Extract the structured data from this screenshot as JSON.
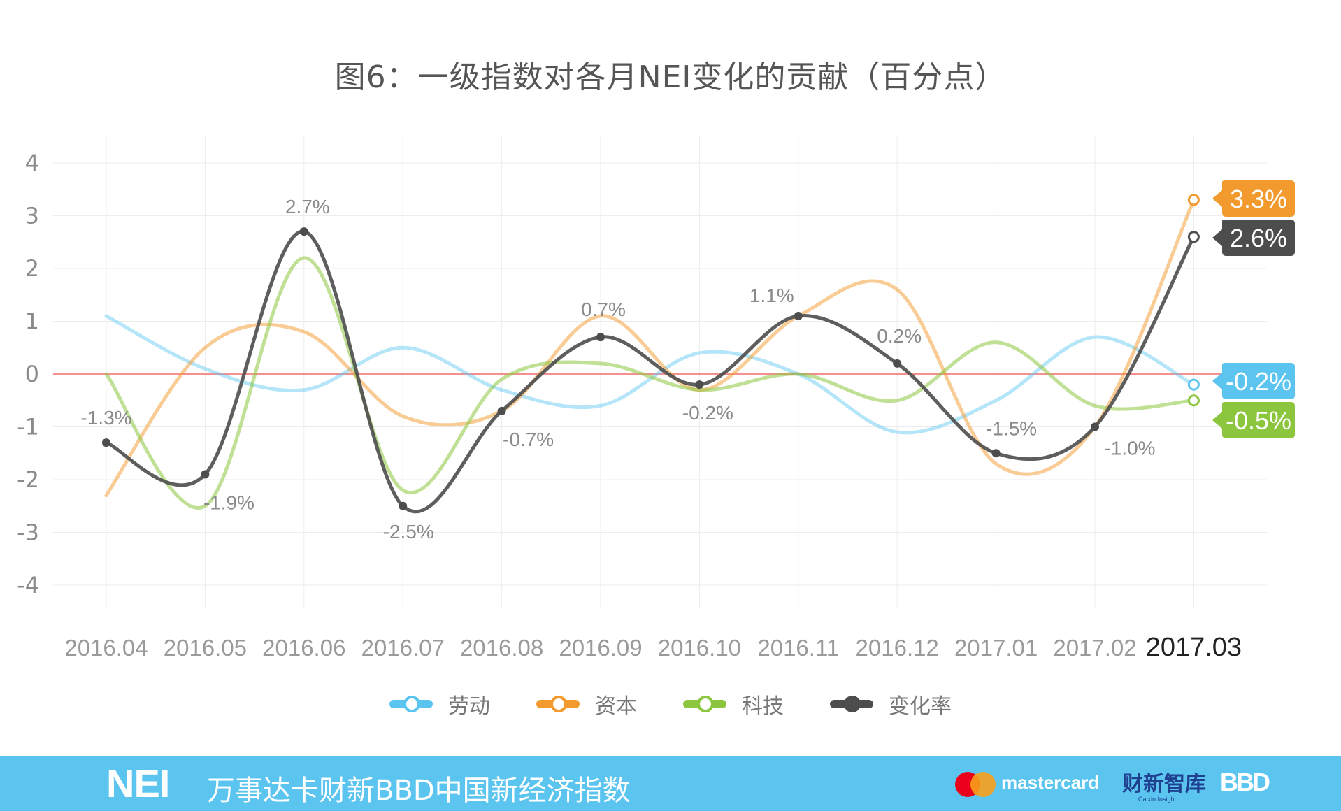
{
  "chart_data": {
    "type": "line",
    "title": "图6：一级指数对各月NEI变化的贡献（百分点）",
    "categories": [
      "2016.04",
      "2016.05",
      "2016.06",
      "2016.07",
      "2016.08",
      "2016.09",
      "2016.10",
      "2016.11",
      "2016.12",
      "2017.01",
      "2017.02",
      "2017.03"
    ],
    "ylim": [
      -4,
      4
    ],
    "yticks": [
      "4",
      "3",
      "2",
      "1",
      "0",
      "-1",
      "-2",
      "-3",
      "-4"
    ],
    "grid": true,
    "zero_line_color": "#f26c6c",
    "series": [
      {
        "name": "劳动",
        "color": "#5bc5f0",
        "values": [
          1.1,
          0.1,
          -0.3,
          0.5,
          -0.3,
          -0.6,
          0.4,
          0.0,
          -1.1,
          -0.5,
          0.7,
          -0.2
        ],
        "end_label": "-0.2%"
      },
      {
        "name": "资本",
        "color": "#f39a2e",
        "values": [
          -2.3,
          0.5,
          0.8,
          -0.8,
          -0.7,
          1.1,
          -0.3,
          1.1,
          1.6,
          -1.7,
          -1.0,
          3.3
        ],
        "end_label": "3.3%"
      },
      {
        "name": "科技",
        "color": "#8cc63f",
        "values": [
          0.0,
          -2.5,
          2.2,
          -2.2,
          -0.1,
          0.2,
          -0.3,
          0.0,
          -0.5,
          0.6,
          -0.6,
          -0.5
        ],
        "end_label": "-0.5%"
      },
      {
        "name": "变化率",
        "color": "#4d4d4d",
        "values": [
          -1.3,
          -1.9,
          2.7,
          -2.5,
          -0.7,
          0.7,
          -0.2,
          1.1,
          0.2,
          -1.5,
          -1.0,
          2.6
        ],
        "end_label": "2.6%",
        "data_labels": [
          "-1.3%",
          "-1.9%",
          "2.7%",
          "-2.5%",
          "-0.7%",
          "0.7%",
          "-0.2%",
          "1.1%",
          "0.2%",
          "-1.5%",
          "-1.0%",
          ""
        ]
      }
    ],
    "legend_position": "bottom"
  },
  "footer": {
    "logo": "NEI",
    "title": "万事达卡财新BBD中国新经济指数",
    "brand1": "mastercard",
    "brand2": "财新智库",
    "brand2_sub": "Caixin Insight",
    "brand3": "BBD"
  }
}
